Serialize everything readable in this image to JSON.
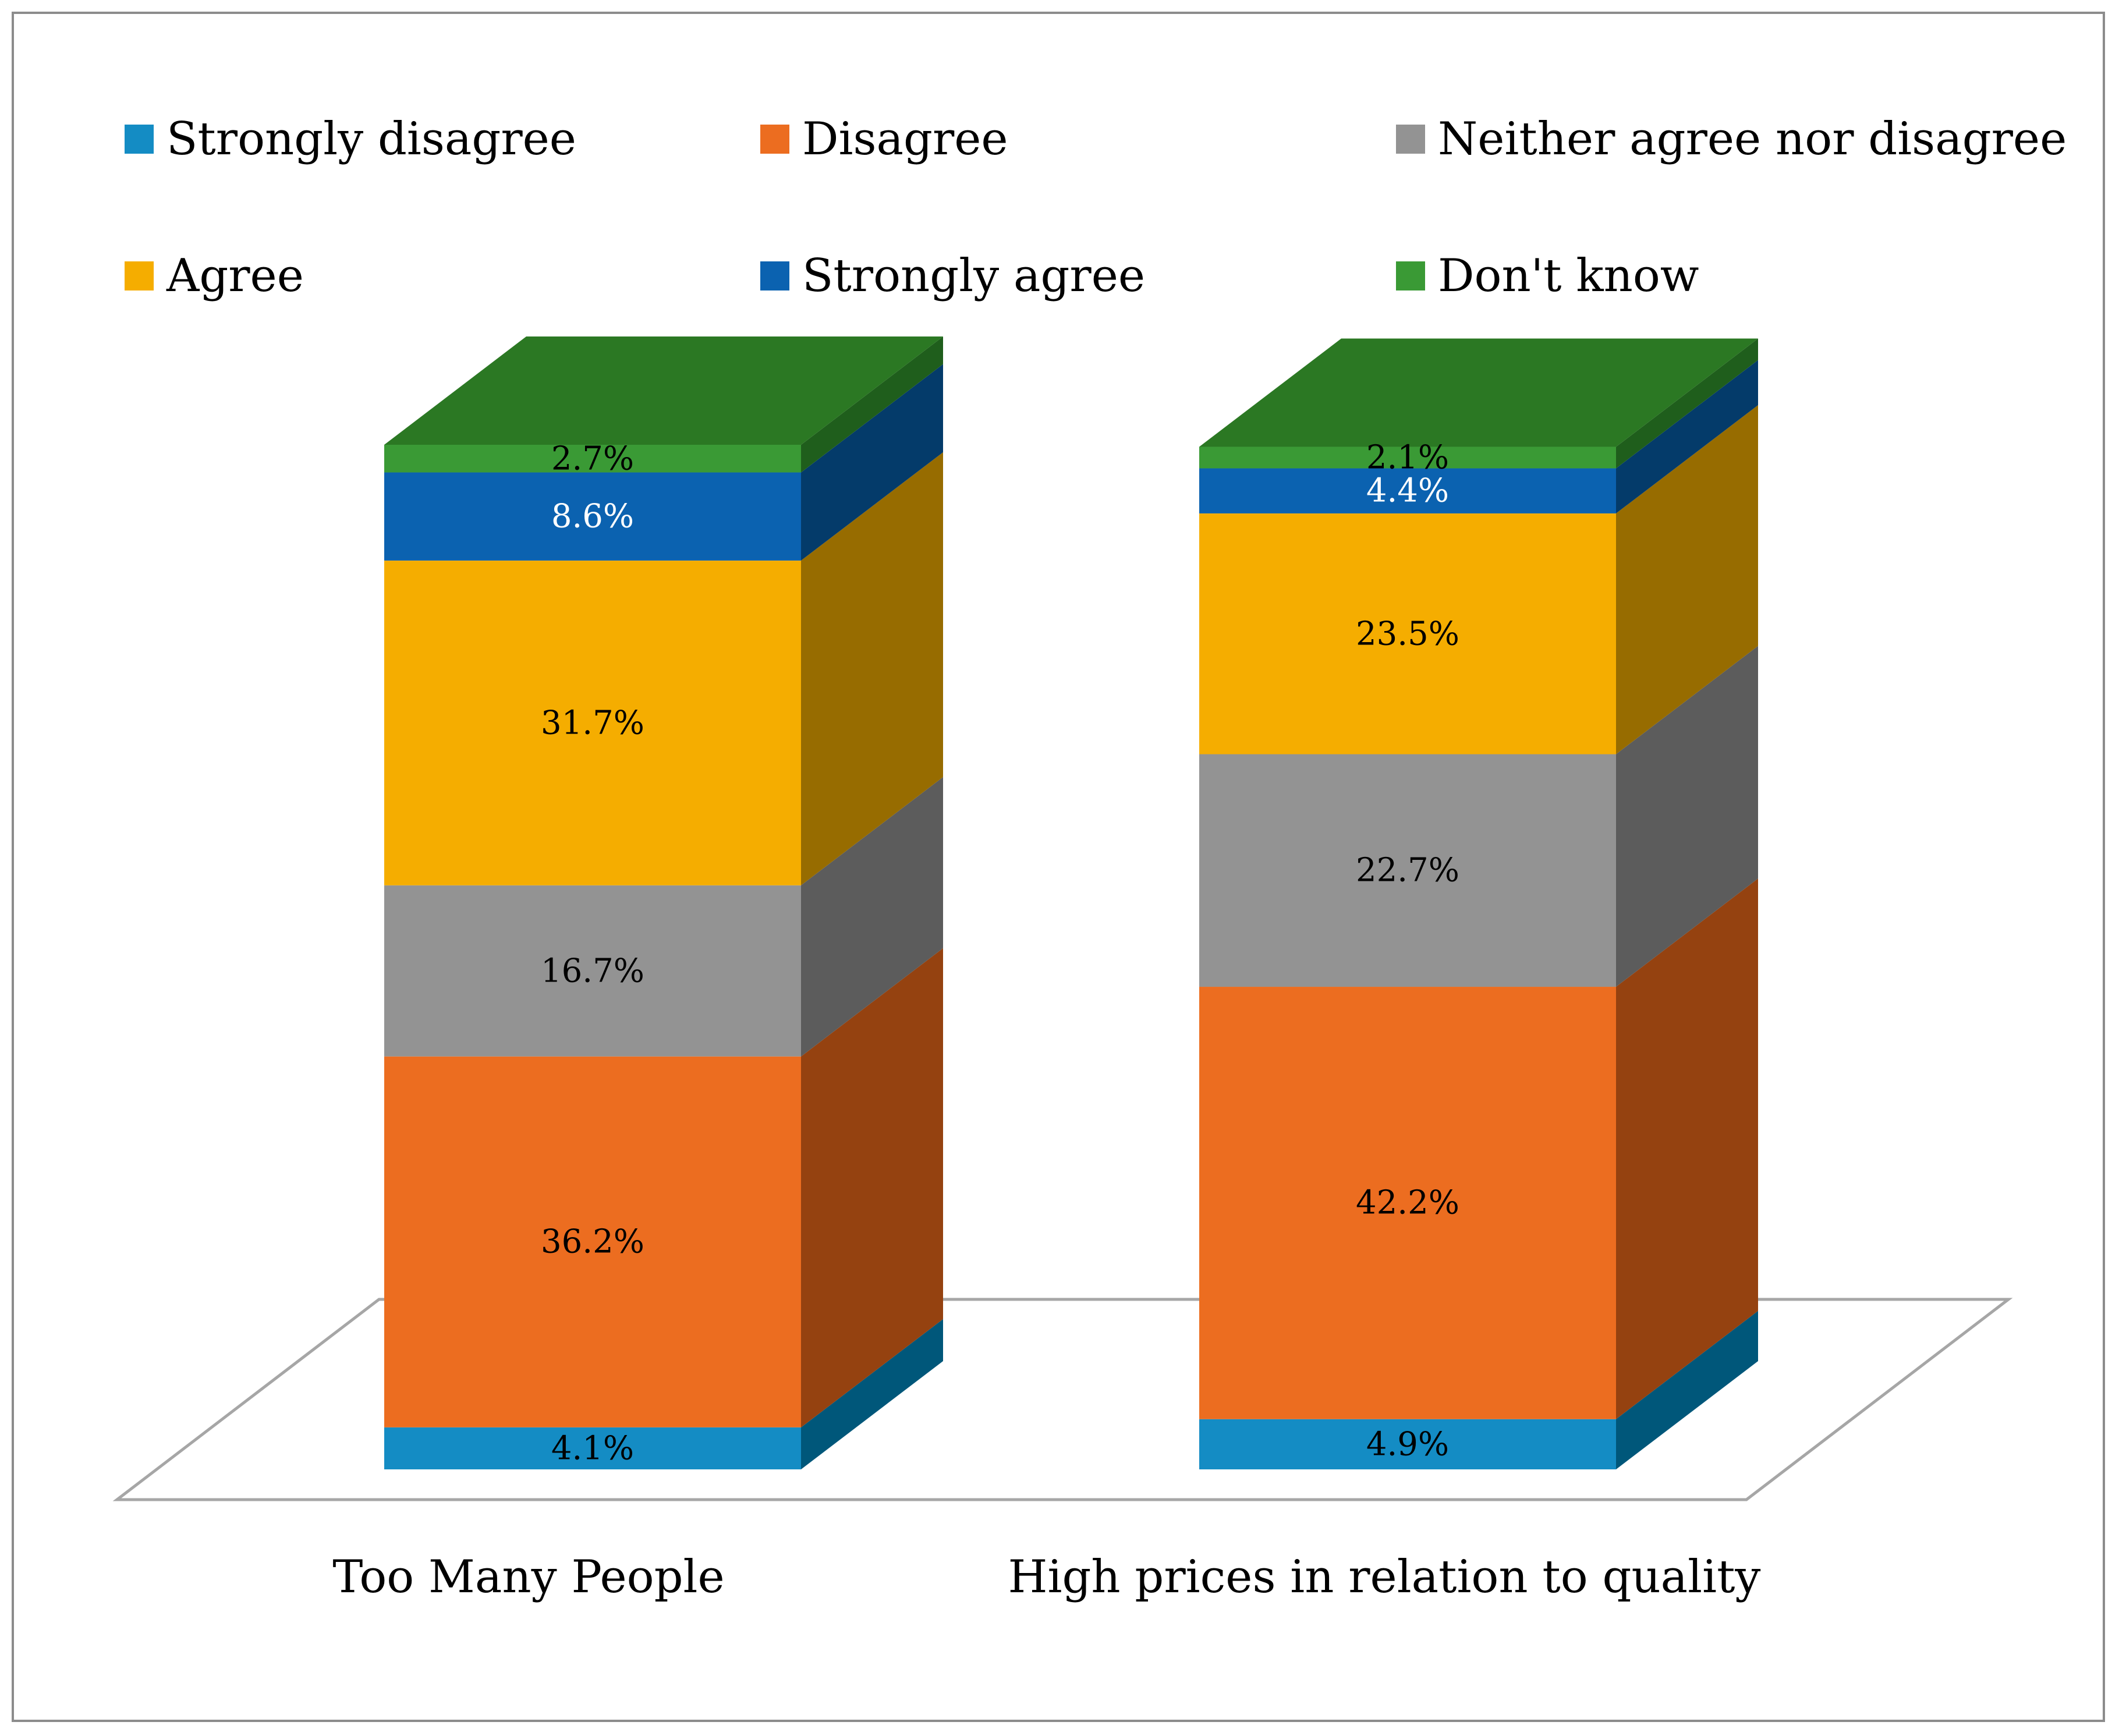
{
  "chart_data": {
    "type": "bar",
    "stacked": true,
    "style": "3d",
    "categories": [
      "Too Many People",
      "High prices in relation to quality"
    ],
    "series": [
      {
        "name": "Strongly disagree",
        "values": [
          4.1,
          4.9
        ],
        "labels": [
          "4.1%",
          "4.9%"
        ],
        "color": "#148CC4",
        "side_color": "#00577A",
        "label_color": "#000000"
      },
      {
        "name": "Disagree",
        "values": [
          36.2,
          42.2
        ],
        "labels": [
          "36.2%",
          "42.2%"
        ],
        "color": "#EC6D20",
        "side_color": "#954210",
        "label_color": "#000000"
      },
      {
        "name": "Neither agree nor disagree",
        "values": [
          16.7,
          22.7
        ],
        "labels": [
          "16.7%",
          "22.7%"
        ],
        "color": "#939393",
        "side_color": "#5C5C5C",
        "label_color": "#000000"
      },
      {
        "name": "Agree",
        "values": [
          31.7,
          23.5
        ],
        "labels": [
          "31.7%",
          "23.5%"
        ],
        "color": "#F5AD00",
        "side_color": "#976C00",
        "label_color": "#000000"
      },
      {
        "name": "Strongly agree",
        "values": [
          8.6,
          4.4
        ],
        "labels": [
          "8.6%",
          "4.4%"
        ],
        "color": "#0B62B0",
        "side_color": "#043B6A",
        "label_color": "#ffffff"
      },
      {
        "name": "Don't know",
        "values": [
          2.7,
          2.1
        ],
        "labels": [
          "2.7%",
          "2.1%"
        ],
        "color": "#3A9A35",
        "side_color": "#1F5E1C",
        "label_color": "#000000",
        "top_color": "#2B7823"
      }
    ],
    "ylim": [
      0,
      100
    ],
    "legend": "top",
    "grid": false
  }
}
